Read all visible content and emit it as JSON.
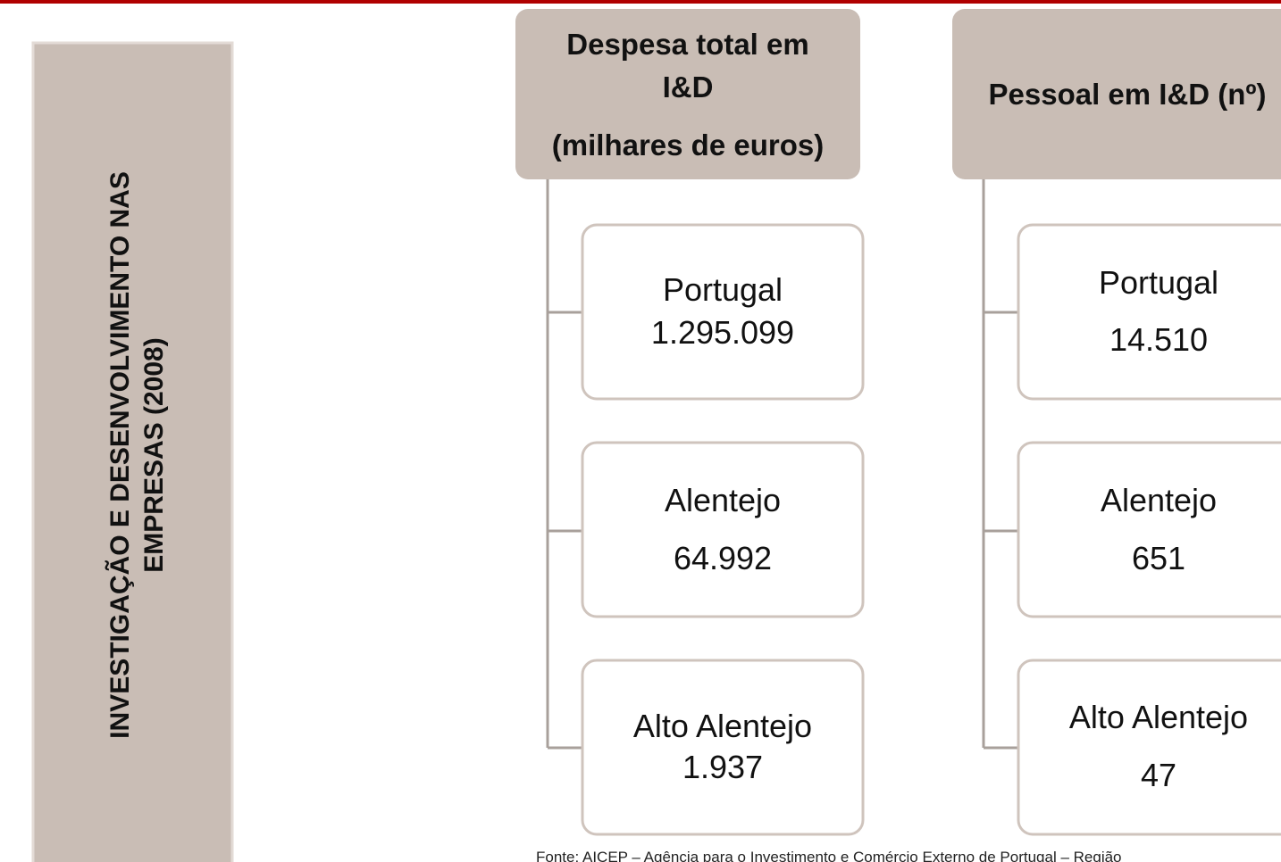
{
  "side_title": {
    "line1": "INVESTIGAÇÃO E DESENVOLVIMENTO NAS",
    "line2": "EMPRESAS (2008)"
  },
  "columns": [
    {
      "header": [
        "Despesa total em",
        "I&D",
        "(milhares de euros)"
      ],
      "items": [
        {
          "label": "Portugal",
          "value": "1.295.099"
        },
        {
          "label": "Alentejo",
          "value": "64.992"
        },
        {
          "label": "Alto Alentejo",
          "value": "1.937"
        }
      ]
    },
    {
      "header": [
        "Pessoal em I&D (nº)"
      ],
      "items": [
        {
          "label": "Portugal",
          "value": "14.510"
        },
        {
          "label": "Alentejo",
          "value": "651"
        },
        {
          "label": "Alto Alentejo",
          "value": "47"
        }
      ]
    }
  ],
  "source": "Fonte: AICEP – Agência para o Investimento e Comércio Externo de Portugal – Região"
}
